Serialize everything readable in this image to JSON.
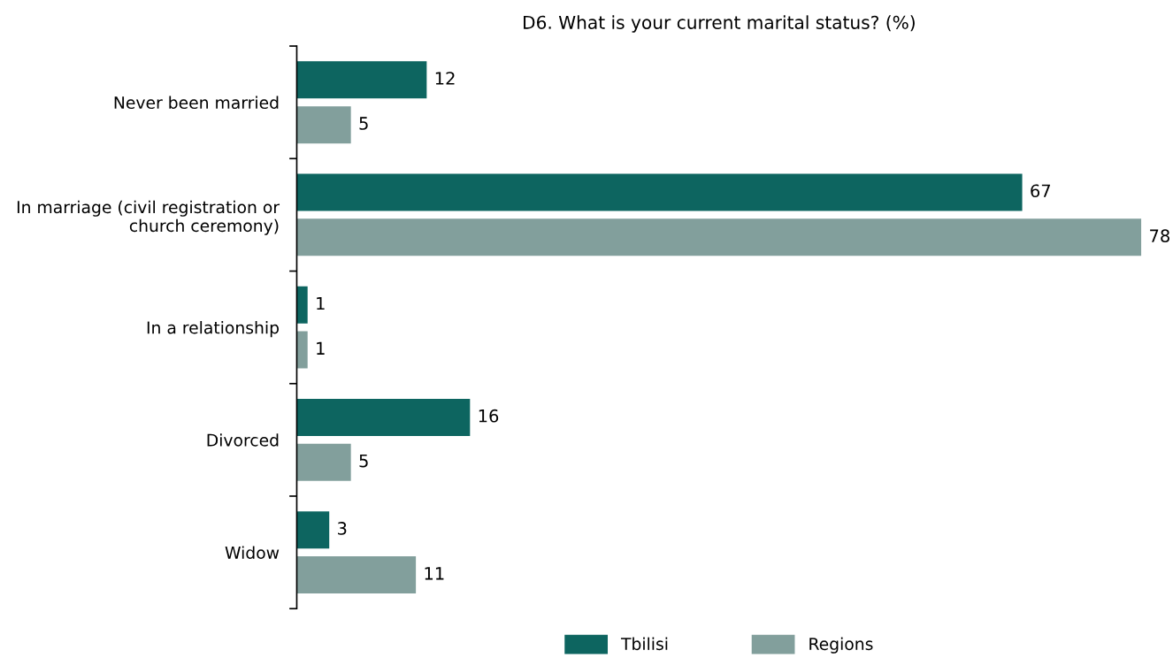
{
  "chart_data": {
    "type": "bar",
    "orientation": "horizontal",
    "title": "D6. What is your current marital status? (%)",
    "categories": [
      "Never been married",
      "In marriage (civil registration or\nchurch ceremony)",
      "In a relationship",
      "Divorced",
      "Widow"
    ],
    "series": [
      {
        "name": "Tbilisi",
        "color": "#0d6560",
        "values": [
          12,
          67,
          1,
          16,
          3
        ]
      },
      {
        "name": "Regions",
        "color": "#829f9c",
        "values": [
          5,
          78,
          1,
          5,
          11
        ]
      }
    ],
    "data_labels": true,
    "legend": "bottom",
    "grid": false,
    "tick_labels": "y"
  }
}
